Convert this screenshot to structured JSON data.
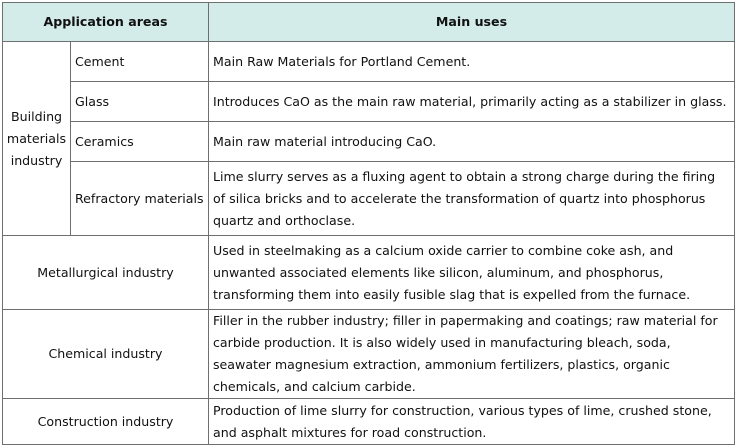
{
  "table": {
    "headers": {
      "areas": "Application areas",
      "uses": "Main uses"
    },
    "building": {
      "label": "Building materials industry",
      "rows": [
        {
          "sub": "Cement",
          "use": "Main Raw Materials for Portland Cement."
        },
        {
          "sub": "Glass",
          "use": "Introduces CaO as the main raw material, primarily acting as a stabilizer in glass."
        },
        {
          "sub": "Ceramics",
          "use": "Main raw material introducing CaO."
        },
        {
          "sub": "Refractory materials",
          "use": "Lime slurry serves as a fluxing agent to obtain a strong charge during the firing of silica bricks and to accelerate the transformation of quartz into phosphorus quartz and orthoclase."
        }
      ]
    },
    "rows": [
      {
        "area": "Metallurgical industry",
        "use": "Used in steelmaking as a calcium oxide carrier to combine coke ash, and unwanted associated elements like silicon, aluminum, and phosphorus, transforming them into easily fusible slag that is expelled from the furnace."
      },
      {
        "area": "Chemical industry",
        "use": "Filler in the rubber industry; filler in papermaking and coatings; raw material for carbide production. It is also widely used in manufacturing bleach, soda, seawater magnesium extraction, ammonium fertilizers, plastics, organic chemicals, and calcium carbide."
      },
      {
        "area": "Construction industry",
        "use": "Production of lime slurry for construction, various types of lime, crushed stone, and asphalt mixtures for road construction."
      }
    ]
  }
}
